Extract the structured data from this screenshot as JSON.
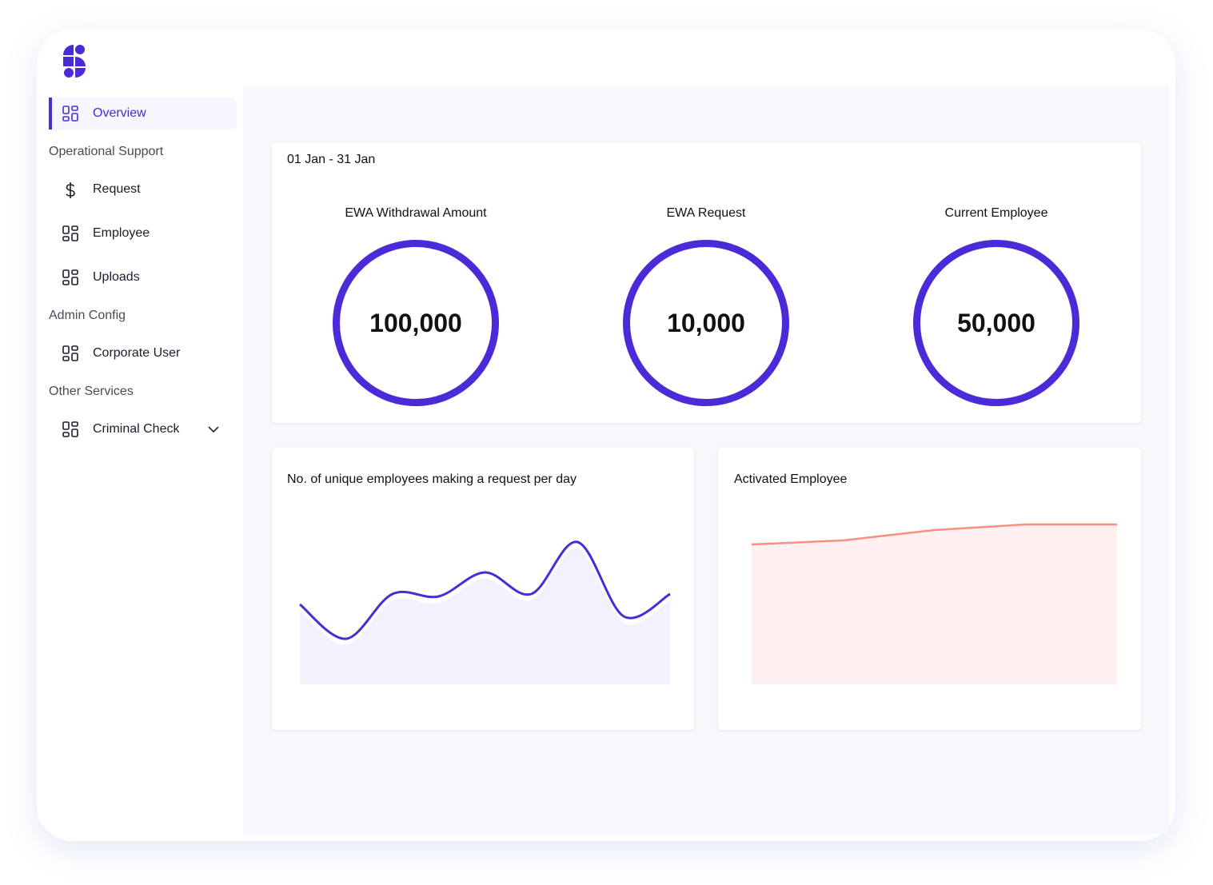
{
  "colors": {
    "accent": "#4b2bd7",
    "area_fill": "#f3f1fd",
    "activated_line": "#f98f80",
    "activated_fill": "#fff1f1"
  },
  "sidebar": {
    "items": [
      {
        "label": "Overview",
        "icon": "grid-icon",
        "active": true
      },
      {
        "section": "Operational Support"
      },
      {
        "label": "Request",
        "icon": "dollar-icon"
      },
      {
        "label": "Employee",
        "icon": "grid-icon"
      },
      {
        "label": "Uploads",
        "icon": "grid-icon"
      },
      {
        "section": "Admin Config"
      },
      {
        "label": "Corporate User",
        "icon": "grid-icon"
      },
      {
        "section": "Other Services"
      },
      {
        "label": "Criminal Check",
        "icon": "grid-icon",
        "expandable": true
      }
    ]
  },
  "summary": {
    "date_range": "01 Jan - 31 Jan",
    "stats": [
      {
        "label": "EWA Withdrawal Amount",
        "value": "100,000"
      },
      {
        "label": "EWA Request",
        "value": "10,000"
      },
      {
        "label": "Current Employee",
        "value": "50,000"
      }
    ]
  },
  "chart_data": [
    {
      "type": "area",
      "title": "No. of unique employees making a request per day",
      "values": [
        100,
        57,
        113,
        110,
        140,
        113,
        178,
        85,
        113
      ]
    },
    {
      "type": "area",
      "title": "Activated Employee",
      "values": [
        175,
        180,
        193,
        200,
        200
      ]
    }
  ]
}
